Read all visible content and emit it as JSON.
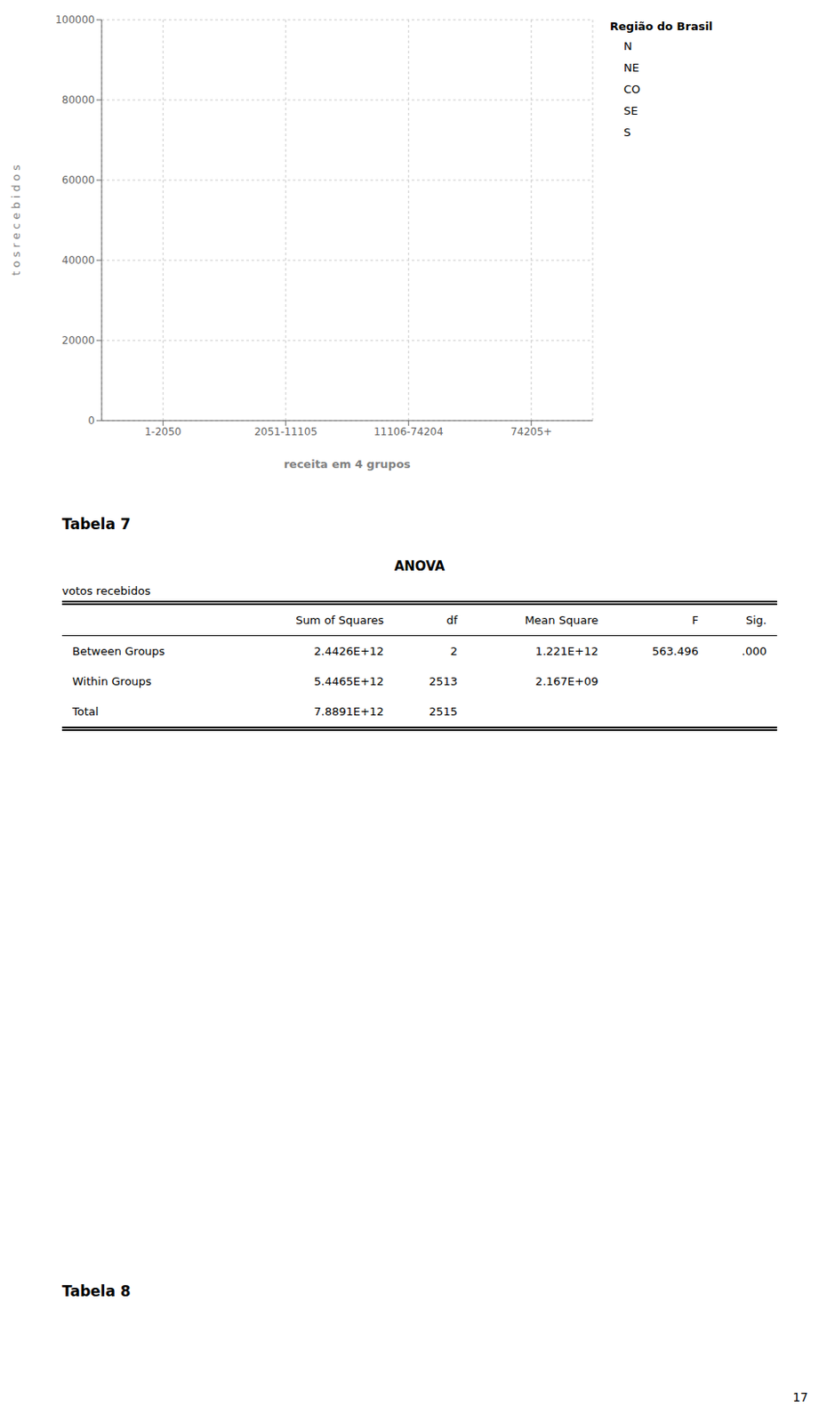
{
  "chart_data": {
    "type": "bar",
    "xlabel": "receita em 4 grupos",
    "ylabel": "t o s  r e c e b i d o s",
    "legend_title": "Região do Brasil",
    "categories": [
      "1-2050",
      "2051-11105",
      "11106-74204",
      "74205+"
    ],
    "series": [
      {
        "name": "N",
        "values": [
          null,
          null,
          null,
          null
        ]
      },
      {
        "name": "NE",
        "values": [
          null,
          null,
          null,
          null
        ]
      },
      {
        "name": "CO",
        "values": [
          null,
          null,
          null,
          null
        ]
      },
      {
        "name": "SE",
        "values": [
          null,
          null,
          null,
          null
        ]
      },
      {
        "name": "S",
        "values": [
          null,
          null,
          null,
          null
        ]
      }
    ],
    "ylim": [
      0,
      100000
    ],
    "yticks": [
      0,
      20000,
      40000,
      60000,
      80000,
      100000
    ]
  },
  "table": {
    "title": "Tabela 7",
    "caption": "ANOVA",
    "subtitle": "votos recebidos",
    "headers": [
      "Sum of Squares",
      "df",
      "Mean Square",
      "F",
      "Sig."
    ],
    "rows": [
      [
        "Between Groups",
        "2.4426E+12",
        "2",
        "1.221E+12",
        "563.496",
        ".000"
      ],
      [
        "Within Groups",
        "5.4465E+12",
        "2513",
        "2.167E+09",
        null,
        null
      ],
      [
        "Total",
        "7.8891E+12",
        "2515",
        null,
        null,
        null
      ]
    ]
  },
  "annotations": [
    "Tabela 8",
    "17"
  ]
}
